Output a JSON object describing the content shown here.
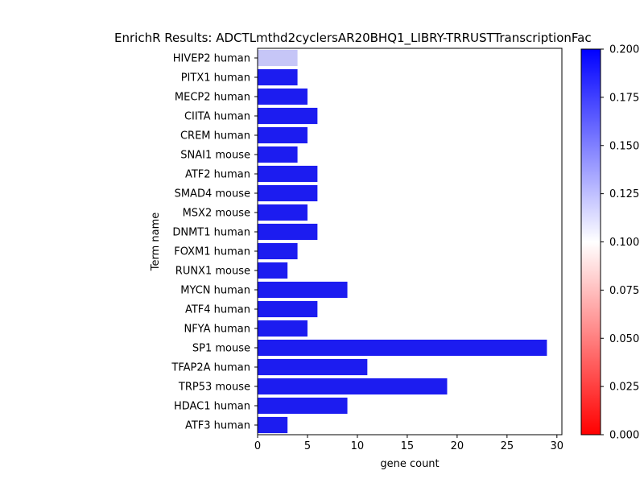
{
  "chart_data": {
    "type": "bar",
    "orientation": "horizontal",
    "title": "EnrichR Results: ADCTLmthd2cyclersAR20BHQ1_LIBRY-TRRUSTTranscriptionFac",
    "xlabel": "gene count",
    "ylabel": "Term name",
    "xlim": [
      0,
      30.5
    ],
    "xticks": [
      0,
      5,
      10,
      15,
      20,
      25,
      30
    ],
    "grid": false,
    "categories": [
      "HIVEP2 human",
      "PITX1 human",
      "MECP2 human",
      "CIITA human",
      "CREM human",
      "SNAI1 mouse",
      "ATF2 human",
      "SMAD4 mouse",
      "MSX2 mouse",
      "DNMT1 human",
      "FOXM1 human",
      "RUNX1 mouse",
      "MYCN human",
      "ATF4 human",
      "NFYA human",
      "SP1 mouse",
      "TFAP2A human",
      "TRP53 mouse",
      "HDAC1 human",
      "ATF3 human"
    ],
    "values": [
      4,
      4,
      5,
      6,
      5,
      4,
      6,
      6,
      5,
      6,
      4,
      3,
      9,
      6,
      5,
      29,
      11,
      19,
      9,
      3
    ],
    "bar_colors": [
      "#c6c6f7",
      "#1c1cf0",
      "#1c1cf0",
      "#1c1cf0",
      "#1c1cf0",
      "#1c1cf0",
      "#1c1cf0",
      "#1c1cf0",
      "#1c1cf0",
      "#1c1cf0",
      "#1c1cf0",
      "#1c1cf0",
      "#1c1cf0",
      "#1c1cf0",
      "#1c1cf0",
      "#1c1cf0",
      "#1c1cf0",
      "#1c1cf0",
      "#1c1cf0",
      "#1c1cf0"
    ],
    "colorbar": {
      "range": [
        0.0,
        0.2
      ],
      "ticks": [
        "0.000",
        "0.025",
        "0.050",
        "0.075",
        "0.100",
        "0.125",
        "0.150",
        "0.175",
        "0.200"
      ],
      "colors": [
        "#ff0000",
        "#ffffff",
        "#0000ff"
      ]
    }
  }
}
